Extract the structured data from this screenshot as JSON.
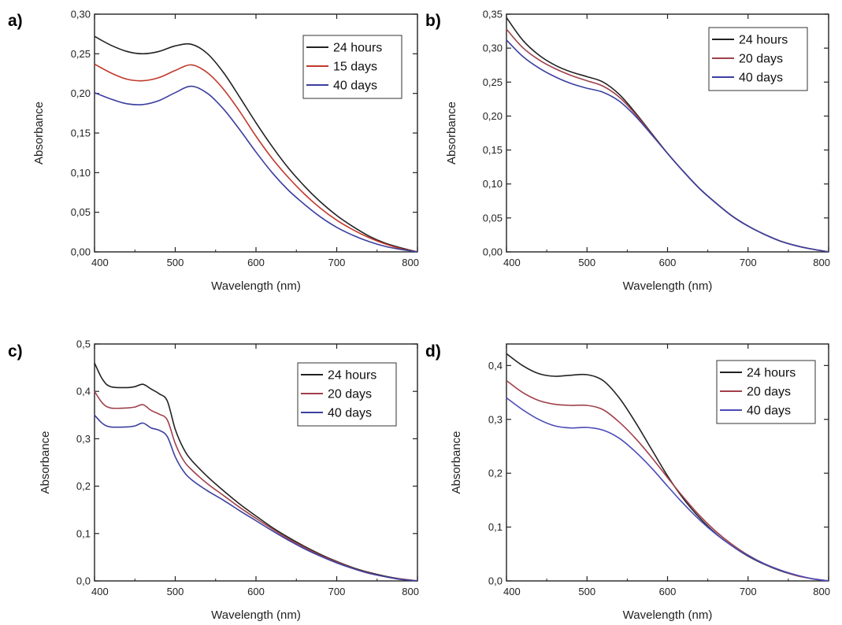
{
  "chart_data": [
    {
      "type": "line",
      "panel_label": "a)",
      "xlabel": "Wavelength (nm)",
      "ylabel": "Absorbance",
      "xlim": [
        400,
        800
      ],
      "ylim": [
        0,
        0.3
      ],
      "xticks": [
        400,
        500,
        600,
        700,
        800
      ],
      "xtick_labels": [
        "400",
        "500",
        "600",
        "700",
        "800"
      ],
      "yticks": [
        0,
        0.05,
        0.1,
        0.15,
        0.2,
        0.25,
        0.3
      ],
      "ytick_labels": [
        "0,00",
        "0,05",
        "0,10",
        "0,15",
        "0,20",
        "0,25",
        "0,30"
      ],
      "grid": false,
      "legend_position": "top-right",
      "series": [
        {
          "name": "24 hours",
          "color": "#222222",
          "x": [
            400,
            420,
            440,
            460,
            480,
            500,
            520,
            540,
            560,
            580,
            600,
            620,
            640,
            660,
            680,
            700,
            720,
            740,
            760,
            780,
            800
          ],
          "y": [
            0.272,
            0.261,
            0.253,
            0.25,
            0.253,
            0.26,
            0.262,
            0.25,
            0.226,
            0.195,
            0.163,
            0.133,
            0.106,
            0.083,
            0.063,
            0.046,
            0.032,
            0.02,
            0.011,
            0.005,
            0.0
          ]
        },
        {
          "name": "15 days",
          "color": "#c0392b",
          "x": [
            400,
            420,
            440,
            460,
            480,
            500,
            520,
            540,
            560,
            580,
            600,
            620,
            640,
            660,
            680,
            700,
            720,
            740,
            760,
            780,
            800
          ],
          "y": [
            0.237,
            0.226,
            0.218,
            0.216,
            0.22,
            0.229,
            0.236,
            0.226,
            0.205,
            0.177,
            0.146,
            0.118,
            0.094,
            0.073,
            0.055,
            0.04,
            0.028,
            0.018,
            0.01,
            0.004,
            0.0
          ]
        },
        {
          "name": "40 days",
          "color": "#3b3f9e",
          "x": [
            400,
            420,
            440,
            460,
            480,
            500,
            520,
            540,
            560,
            580,
            600,
            620,
            640,
            660,
            680,
            700,
            720,
            740,
            760,
            780,
            800
          ],
          "y": [
            0.201,
            0.193,
            0.187,
            0.186,
            0.191,
            0.201,
            0.209,
            0.2,
            0.18,
            0.154,
            0.126,
            0.1,
            0.078,
            0.06,
            0.044,
            0.031,
            0.021,
            0.013,
            0.007,
            0.003,
            0.0
          ]
        }
      ]
    },
    {
      "type": "line",
      "panel_label": "b)",
      "xlabel": "Wavelength (nm)",
      "ylabel": "Absorbance",
      "xlim": [
        400,
        800
      ],
      "ylim": [
        0,
        0.35
      ],
      "xticks": [
        400,
        500,
        600,
        700,
        800
      ],
      "xtick_labels": [
        "400",
        "500",
        "600",
        "700",
        "800"
      ],
      "yticks": [
        0,
        0.05,
        0.1,
        0.15,
        0.2,
        0.25,
        0.3,
        0.35
      ],
      "ytick_labels": [
        "0,00",
        "0,05",
        "0,10",
        "0,15",
        "0,20",
        "0,25",
        "0,30",
        "0,35"
      ],
      "grid": false,
      "legend_position": "top-right",
      "series": [
        {
          "name": "24 hours",
          "color": "#222222",
          "x": [
            400,
            420,
            440,
            460,
            480,
            500,
            520,
            540,
            560,
            580,
            600,
            620,
            640,
            660,
            680,
            700,
            720,
            740,
            760,
            780,
            800
          ],
          "y": [
            0.345,
            0.312,
            0.29,
            0.275,
            0.265,
            0.258,
            0.25,
            0.232,
            0.205,
            0.175,
            0.145,
            0.118,
            0.093,
            0.072,
            0.053,
            0.038,
            0.026,
            0.016,
            0.009,
            0.004,
            0.0
          ]
        },
        {
          "name": "20 days",
          "color": "#a0404a",
          "x": [
            400,
            420,
            440,
            460,
            480,
            500,
            520,
            540,
            560,
            580,
            600,
            620,
            640,
            660,
            680,
            700,
            720,
            740,
            760,
            780,
            800
          ],
          "y": [
            0.328,
            0.301,
            0.283,
            0.27,
            0.26,
            0.252,
            0.244,
            0.228,
            0.203,
            0.174,
            0.145,
            0.118,
            0.093,
            0.072,
            0.053,
            0.038,
            0.026,
            0.016,
            0.009,
            0.004,
            0.0
          ]
        },
        {
          "name": "40 days",
          "color": "#3b3f9e",
          "x": [
            400,
            420,
            440,
            460,
            480,
            500,
            520,
            540,
            560,
            580,
            600,
            620,
            640,
            660,
            680,
            700,
            720,
            740,
            760,
            780,
            800
          ],
          "y": [
            0.312,
            0.288,
            0.271,
            0.258,
            0.248,
            0.241,
            0.235,
            0.222,
            0.2,
            0.173,
            0.145,
            0.118,
            0.093,
            0.072,
            0.053,
            0.038,
            0.026,
            0.016,
            0.009,
            0.004,
            0.0
          ]
        }
      ]
    },
    {
      "type": "line",
      "panel_label": "c)",
      "xlabel": "Wavelength (nm)",
      "ylabel": "Absorbance",
      "xlim": [
        400,
        800
      ],
      "ylim": [
        0,
        0.5
      ],
      "xticks": [
        400,
        500,
        600,
        700,
        800
      ],
      "xtick_labels": [
        "400",
        "500",
        "600",
        "700",
        "800"
      ],
      "yticks": [
        0,
        0.1,
        0.2,
        0.3,
        0.4,
        0.5
      ],
      "ytick_labels": [
        "0,0",
        "0,1",
        "0,2",
        "0,3",
        "0,4",
        "0,5"
      ],
      "grid": false,
      "legend_position": "top-right",
      "series": [
        {
          "name": "24 hours",
          "color": "#222222",
          "x": [
            400,
            410,
            420,
            440,
            450,
            460,
            470,
            480,
            490,
            500,
            510,
            520,
            540,
            560,
            580,
            600,
            620,
            640,
            660,
            680,
            700,
            720,
            740,
            760,
            780,
            800
          ],
          "y": [
            0.46,
            0.425,
            0.41,
            0.408,
            0.41,
            0.415,
            0.405,
            0.395,
            0.38,
            0.32,
            0.28,
            0.255,
            0.22,
            0.19,
            0.162,
            0.137,
            0.113,
            0.092,
            0.073,
            0.056,
            0.041,
            0.028,
            0.018,
            0.01,
            0.004,
            0.0
          ]
        },
        {
          "name": "20 days",
          "color": "#a0404a",
          "x": [
            400,
            410,
            420,
            440,
            450,
            460,
            470,
            480,
            490,
            500,
            510,
            520,
            540,
            560,
            580,
            600,
            620,
            640,
            660,
            680,
            700,
            720,
            740,
            760,
            780,
            800
          ],
          "y": [
            0.4,
            0.375,
            0.365,
            0.365,
            0.367,
            0.372,
            0.36,
            0.352,
            0.34,
            0.29,
            0.255,
            0.235,
            0.205,
            0.18,
            0.155,
            0.132,
            0.11,
            0.089,
            0.071,
            0.054,
            0.04,
            0.027,
            0.017,
            0.009,
            0.004,
            0.0
          ]
        },
        {
          "name": "40 days",
          "color": "#3b3f9e",
          "x": [
            400,
            410,
            420,
            440,
            450,
            460,
            470,
            480,
            490,
            500,
            510,
            520,
            540,
            560,
            580,
            600,
            620,
            640,
            660,
            680,
            700,
            720,
            740,
            760,
            780,
            800
          ],
          "y": [
            0.35,
            0.332,
            0.325,
            0.325,
            0.327,
            0.333,
            0.323,
            0.318,
            0.305,
            0.262,
            0.232,
            0.214,
            0.19,
            0.17,
            0.148,
            0.127,
            0.106,
            0.086,
            0.068,
            0.052,
            0.038,
            0.026,
            0.016,
            0.009,
            0.003,
            0.0
          ]
        }
      ]
    },
    {
      "type": "line",
      "panel_label": "d)",
      "xlabel": "Wavelength (nm)",
      "ylabel": "Absorbance",
      "xlim": [
        400,
        800
      ],
      "ylim": [
        0,
        0.44
      ],
      "xticks": [
        400,
        500,
        600,
        700,
        800
      ],
      "xtick_labels": [
        "400",
        "500",
        "600",
        "700",
        "800"
      ],
      "yticks": [
        0,
        0.1,
        0.2,
        0.3,
        0.4
      ],
      "ytick_labels": [
        "0,0",
        "0,1",
        "0,2",
        "0,3",
        "0,4"
      ],
      "grid": false,
      "legend_position": "top-right",
      "series": [
        {
          "name": "24 hours",
          "color": "#222222",
          "x": [
            400,
            420,
            440,
            460,
            480,
            500,
            520,
            540,
            560,
            580,
            600,
            620,
            640,
            660,
            680,
            700,
            720,
            740,
            760,
            780,
            800
          ],
          "y": [
            0.422,
            0.4,
            0.385,
            0.38,
            0.382,
            0.383,
            0.372,
            0.34,
            0.295,
            0.245,
            0.195,
            0.152,
            0.117,
            0.088,
            0.065,
            0.046,
            0.031,
            0.019,
            0.01,
            0.004,
            0.0
          ]
        },
        {
          "name": "20 days",
          "color": "#a0404a",
          "x": [
            400,
            420,
            440,
            460,
            480,
            500,
            520,
            540,
            560,
            580,
            600,
            620,
            640,
            660,
            680,
            700,
            720,
            740,
            760,
            780,
            800
          ],
          "y": [
            0.372,
            0.35,
            0.335,
            0.328,
            0.326,
            0.326,
            0.318,
            0.295,
            0.265,
            0.23,
            0.192,
            0.155,
            0.121,
            0.092,
            0.068,
            0.048,
            0.032,
            0.02,
            0.01,
            0.004,
            0.0
          ]
        },
        {
          "name": "40 days",
          "color": "#4a4ab8",
          "x": [
            400,
            420,
            440,
            460,
            480,
            500,
            520,
            540,
            560,
            580,
            600,
            620,
            640,
            660,
            680,
            700,
            720,
            740,
            760,
            780,
            800
          ],
          "y": [
            0.34,
            0.318,
            0.3,
            0.288,
            0.284,
            0.285,
            0.28,
            0.265,
            0.24,
            0.21,
            0.176,
            0.143,
            0.113,
            0.087,
            0.065,
            0.047,
            0.032,
            0.02,
            0.011,
            0.004,
            0.0
          ]
        }
      ]
    }
  ]
}
